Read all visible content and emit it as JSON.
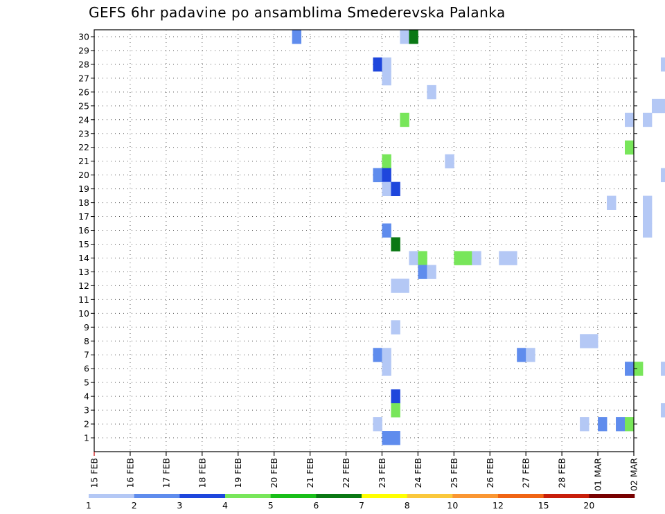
{
  "chart_data": {
    "type": "heatmap",
    "title": "GEFS 6hr padavine po ansamblima Smederevska Palanka",
    "xlabel": "",
    "ylabel": "",
    "x_ticks": [
      "15 FEB",
      "16 FEB",
      "17 FEB",
      "18 FEB",
      "19 FEB",
      "20 FEB",
      "21 FEB",
      "22 FEB",
      "23 FEB",
      "24 FEB",
      "25 FEB",
      "26 FEB",
      "27 FEB",
      "28 FEB",
      "01 MAR",
      "02 MAR"
    ],
    "y_ticks": [
      1,
      2,
      3,
      4,
      5,
      6,
      7,
      8,
      9,
      10,
      11,
      12,
      13,
      14,
      15,
      16,
      17,
      18,
      19,
      20,
      21,
      22,
      23,
      24,
      25,
      26,
      27,
      28,
      29,
      30
    ],
    "steps_per_day": 4,
    "grid": true,
    "legend_position": "bottom",
    "legend": {
      "labels": [
        "1",
        "2",
        "3",
        "4",
        "5",
        "6",
        "7",
        "8",
        "10",
        "12",
        "15",
        "20"
      ],
      "colors": [
        "#b4c8f5",
        "#5f8ced",
        "#1e46dc",
        "#78e65a",
        "#19be19",
        "#0a7814",
        "#ffff00",
        "#fac83c",
        "#fa9632",
        "#f06414",
        "#c81e0a",
        "#780000"
      ]
    },
    "cells": [
      {
        "m": 30,
        "s": 22,
        "c": 1
      },
      {
        "m": 30,
        "s": 34,
        "c": 0
      },
      {
        "m": 30,
        "s": 35,
        "c": 5
      },
      {
        "m": 29,
        "s": 92,
        "c": 0
      },
      {
        "m": 29,
        "s": 93,
        "c": 1
      },
      {
        "m": 28,
        "s": 31,
        "c": 2
      },
      {
        "m": 28,
        "s": 32,
        "c": 0
      },
      {
        "m": 28,
        "s": 63,
        "c": 0
      },
      {
        "m": 28,
        "s": 64,
        "c": 0
      },
      {
        "m": 28,
        "s": 68,
        "c": 1
      },
      {
        "m": 28,
        "s": 69,
        "c": 0
      },
      {
        "m": 28,
        "s": 70,
        "c": 0
      },
      {
        "m": 28,
        "s": 92,
        "c": 0
      },
      {
        "m": 28,
        "s": 93,
        "c": 0
      },
      {
        "m": 27,
        "s": 32,
        "c": 0
      },
      {
        "m": 27,
        "s": 64,
        "c": 1
      },
      {
        "m": 27,
        "s": 71,
        "c": 2
      },
      {
        "m": 27,
        "s": 72,
        "c": 0
      },
      {
        "m": 27,
        "s": 89,
        "c": 4
      },
      {
        "m": 27,
        "s": 90,
        "c": 0
      },
      {
        "m": 26,
        "s": 37,
        "c": 0
      },
      {
        "m": 25,
        "s": 62,
        "c": 0
      },
      {
        "m": 25,
        "s": 63,
        "c": 0
      },
      {
        "m": 25,
        "s": 87,
        "c": 0
      },
      {
        "m": 25,
        "s": 88,
        "c": 0
      },
      {
        "m": 25,
        "s": 89,
        "c": 1
      },
      {
        "m": 24,
        "s": 34,
        "c": 3
      },
      {
        "m": 24,
        "s": 59,
        "c": 0
      },
      {
        "m": 24,
        "s": 61,
        "c": 0
      },
      {
        "m": 23,
        "s": 71,
        "c": 0
      },
      {
        "m": 22,
        "s": 59,
        "c": 3
      },
      {
        "m": 22,
        "s": 66,
        "c": 0
      },
      {
        "m": 22,
        "s": 73,
        "c": 0
      },
      {
        "m": 21,
        "s": 32,
        "c": 3
      },
      {
        "m": 21,
        "s": 39,
        "c": 0
      },
      {
        "m": 21,
        "s": 87,
        "c": 0
      },
      {
        "m": 21,
        "s": 89,
        "c": 1
      },
      {
        "m": 21,
        "s": 90,
        "c": 5
      },
      {
        "m": 21,
        "s": 91,
        "c": 1
      },
      {
        "m": 21,
        "s": 92,
        "c": 1
      },
      {
        "m": 21,
        "s": 93,
        "c": 2
      },
      {
        "m": 20,
        "s": 31,
        "c": 1
      },
      {
        "m": 20,
        "s": 32,
        "c": 2
      },
      {
        "m": 20,
        "s": 63,
        "c": 0
      },
      {
        "m": 20,
        "s": 66,
        "c": 0
      },
      {
        "m": 20,
        "s": 67,
        "c": 0
      },
      {
        "m": 20,
        "s": 68,
        "c": 0
      },
      {
        "m": 20,
        "s": 69,
        "c": 0
      },
      {
        "m": 20,
        "s": 70,
        "c": 1
      },
      {
        "m": 20,
        "s": 71,
        "c": 2
      },
      {
        "m": 20,
        "s": 76,
        "c": 2
      },
      {
        "m": 20,
        "s": 77,
        "c": 1
      },
      {
        "m": 20,
        "s": 78,
        "c": 0
      },
      {
        "m": 20,
        "s": 79,
        "c": 4
      },
      {
        "m": 20,
        "s": 80,
        "c": 4
      },
      {
        "m": 20,
        "s": 81,
        "c": 0
      },
      {
        "m": 20,
        "s": 82,
        "c": 0
      },
      {
        "m": 19,
        "s": 32,
        "c": 0
      },
      {
        "m": 19,
        "s": 33,
        "c": 2
      },
      {
        "m": 18,
        "s": 57,
        "c": 0
      },
      {
        "m": 18,
        "s": 61,
        "c": 0
      },
      {
        "m": 18,
        "s": 82,
        "c": 0
      },
      {
        "m": 17,
        "s": 61,
        "c": 0
      },
      {
        "m": 17,
        "s": 70,
        "c": 0
      },
      {
        "m": 17,
        "s": 78,
        "c": 1
      },
      {
        "m": 17,
        "s": 79,
        "c": 1
      },
      {
        "m": 17,
        "s": 80,
        "c": 3
      },
      {
        "m": 16,
        "s": 32,
        "c": 1
      },
      {
        "m": 16,
        "s": 61,
        "c": 0
      },
      {
        "m": 16,
        "s": 70,
        "c": 0
      },
      {
        "m": 16,
        "s": 78,
        "c": 0
      },
      {
        "m": 16,
        "s": 80,
        "c": 0
      },
      {
        "m": 15,
        "s": 33,
        "c": 5
      },
      {
        "m": 15,
        "s": 70,
        "c": 0
      },
      {
        "m": 15,
        "s": 71,
        "c": 3
      },
      {
        "m": 15,
        "s": 74,
        "c": 0
      },
      {
        "m": 15,
        "s": 75,
        "c": 3
      },
      {
        "m": 15,
        "s": 79,
        "c": 6
      },
      {
        "m": 15,
        "s": 80,
        "c": 2
      },
      {
        "m": 14,
        "s": 35,
        "c": 0
      },
      {
        "m": 14,
        "s": 36,
        "c": 3
      },
      {
        "m": 14,
        "s": 40,
        "c": 3
      },
      {
        "m": 14,
        "s": 41,
        "c": 3
      },
      {
        "m": 14,
        "s": 42,
        "c": 0
      },
      {
        "m": 14,
        "s": 45,
        "c": 0
      },
      {
        "m": 14,
        "s": 46,
        "c": 0
      },
      {
        "m": 14,
        "s": 72,
        "c": 0
      },
      {
        "m": 13,
        "s": 36,
        "c": 1
      },
      {
        "m": 13,
        "s": 37,
        "c": 0
      },
      {
        "m": 13,
        "s": 64,
        "c": 1
      },
      {
        "m": 12,
        "s": 33,
        "c": 0
      },
      {
        "m": 12,
        "s": 34,
        "c": 0
      },
      {
        "m": 12,
        "s": 76,
        "c": 4
      },
      {
        "m": 10,
        "s": 65,
        "c": 2
      },
      {
        "m": 10,
        "s": 66,
        "c": 0
      },
      {
        "m": 10,
        "s": 69,
        "c": 0
      },
      {
        "m": 10,
        "s": 70,
        "c": 1
      },
      {
        "m": 10,
        "s": 76,
        "c": 0
      },
      {
        "m": 10,
        "s": 77,
        "c": 2
      },
      {
        "m": 9,
        "s": 33,
        "c": 0
      },
      {
        "m": 9,
        "s": 64,
        "c": 2
      },
      {
        "m": 9,
        "s": 65,
        "c": 3
      },
      {
        "m": 9,
        "s": 66,
        "c": 1
      },
      {
        "m": 9,
        "s": 67,
        "c": 0
      },
      {
        "m": 9,
        "s": 68,
        "c": 1
      },
      {
        "m": 9,
        "s": 69,
        "c": 4
      },
      {
        "m": 9,
        "s": 70,
        "c": 2
      },
      {
        "m": 9,
        "s": 71,
        "c": 6
      },
      {
        "m": 9,
        "s": 72,
        "c": 0
      },
      {
        "m": 9,
        "s": 88,
        "c": 1
      },
      {
        "m": 9,
        "s": 89,
        "c": 0
      },
      {
        "m": 8,
        "s": 54,
        "c": 0
      },
      {
        "m": 8,
        "s": 55,
        "c": 0
      },
      {
        "m": 8,
        "s": 68,
        "c": 1
      },
      {
        "m": 8,
        "s": 69,
        "c": 3
      },
      {
        "m": 8,
        "s": 70,
        "c": 2
      },
      {
        "m": 8,
        "s": 71,
        "c": 0
      },
      {
        "m": 8,
        "s": 72,
        "c": 0
      },
      {
        "m": 8,
        "s": 73,
        "c": 0
      },
      {
        "m": 8,
        "s": 74,
        "c": 1
      },
      {
        "m": 7,
        "s": 31,
        "c": 1
      },
      {
        "m": 7,
        "s": 32,
        "c": 0
      },
      {
        "m": 7,
        "s": 47,
        "c": 1
      },
      {
        "m": 7,
        "s": 48,
        "c": 0
      },
      {
        "m": 7,
        "s": 69,
        "c": 2
      },
      {
        "m": 7,
        "s": 70,
        "c": 3
      },
      {
        "m": 7,
        "s": 71,
        "c": 0
      },
      {
        "m": 7,
        "s": 72,
        "c": 2
      },
      {
        "m": 7,
        "s": 73,
        "c": 5
      },
      {
        "m": 7,
        "s": 74,
        "c": 1
      },
      {
        "m": 6,
        "s": 32,
        "c": 0
      },
      {
        "m": 6,
        "s": 59,
        "c": 1
      },
      {
        "m": 6,
        "s": 60,
        "c": 3
      },
      {
        "m": 6,
        "s": 63,
        "c": 0
      },
      {
        "m": 6,
        "s": 64,
        "c": 0
      },
      {
        "m": 6,
        "s": 65,
        "c": 0
      },
      {
        "m": 6,
        "s": 68,
        "c": 1
      },
      {
        "m": 6,
        "s": 78,
        "c": 3
      },
      {
        "m": 6,
        "s": 79,
        "c": 3
      },
      {
        "m": 6,
        "s": 82,
        "c": 0
      },
      {
        "m": 6,
        "s": 84,
        "c": 0
      },
      {
        "m": 5,
        "s": 66,
        "c": 7
      },
      {
        "m": 5,
        "s": 71,
        "c": 1
      },
      {
        "m": 5,
        "s": 72,
        "c": 3
      },
      {
        "m": 4,
        "s": 33,
        "c": 2
      },
      {
        "m": 3,
        "s": 33,
        "c": 3
      },
      {
        "m": 3,
        "s": 63,
        "c": 0
      },
      {
        "m": 3,
        "s": 64,
        "c": 0
      },
      {
        "m": 3,
        "s": 65,
        "c": 0
      },
      {
        "m": 3,
        "s": 71,
        "c": 0
      },
      {
        "m": 3,
        "s": 72,
        "c": 0
      },
      {
        "m": 3,
        "s": 86,
        "c": 1
      },
      {
        "m": 3,
        "s": 87,
        "c": 1
      },
      {
        "m": 3,
        "s": 88,
        "c": 0
      },
      {
        "m": 3,
        "s": 89,
        "c": 3
      },
      {
        "m": 3,
        "s": 90,
        "c": 5
      },
      {
        "m": 3,
        "s": 91,
        "c": 6
      },
      {
        "m": 3,
        "s": 92,
        "c": 0
      },
      {
        "m": 2,
        "s": 31,
        "c": 0
      },
      {
        "m": 2,
        "s": 54,
        "c": 0
      },
      {
        "m": 2,
        "s": 56,
        "c": 1
      },
      {
        "m": 2,
        "s": 58,
        "c": 1
      },
      {
        "m": 2,
        "s": 59,
        "c": 3
      },
      {
        "m": 2,
        "s": 70,
        "c": 0
      },
      {
        "m": 2,
        "s": 72,
        "c": 1
      },
      {
        "m": 2,
        "s": 73,
        "c": 5
      },
      {
        "m": 2,
        "s": 74,
        "c": 4
      },
      {
        "m": 2,
        "s": 75,
        "c": 1
      },
      {
        "m": 2,
        "s": 77,
        "c": 0
      },
      {
        "m": 2,
        "s": 78,
        "c": 0
      },
      {
        "m": 1,
        "s": 32,
        "c": 1
      },
      {
        "m": 1,
        "s": 33,
        "c": 1
      }
    ]
  }
}
